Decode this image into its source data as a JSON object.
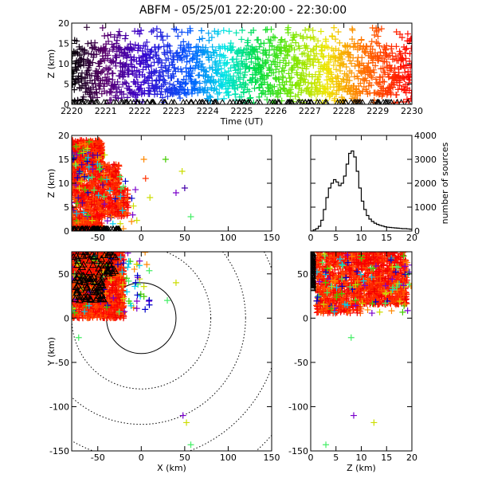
{
  "title": "ABFM - 05/25/01 22:20:00 - 22:30:00",
  "chart_data": [
    {
      "id": "time-height",
      "type": "scatter",
      "xlabel": "Time (UT)",
      "ylabel": "Z (km)",
      "xlim": [
        2220,
        2230
      ],
      "ylim": [
        0,
        20
      ],
      "xticks": [
        "2220",
        "2221",
        "2222",
        "2223",
        "2224",
        "2225",
        "2226",
        "2227",
        "2228",
        "2229",
        "2230"
      ],
      "yticks": [
        "0",
        "5",
        "10",
        "15",
        "20"
      ],
      "color_by": "time",
      "series": [
        {
          "values": [
            [
              2220.2,
              7
            ],
            [
              2220.5,
              9
            ],
            [
              2221,
              12
            ],
            [
              2221.5,
              8
            ],
            [
              2222,
              10
            ],
            [
              2222.5,
              6
            ],
            [
              2223,
              11
            ],
            [
              2223.5,
              9
            ],
            [
              2224,
              13
            ],
            [
              2224.5,
              7
            ],
            [
              2225,
              10
            ],
            [
              2225.5,
              8
            ],
            [
              2226,
              12
            ],
            [
              2226.5,
              9
            ],
            [
              2227,
              11
            ],
            [
              2227.5,
              6
            ],
            [
              2228,
              10
            ],
            [
              2228.5,
              8
            ],
            [
              2229,
              12
            ],
            [
              2229.5,
              9
            ],
            [
              2229.9,
              7
            ]
          ]
        }
      ],
      "band": {
        "low": 2.5,
        "high": 14.5
      },
      "ground_markers": true
    },
    {
      "id": "x-z",
      "type": "scatter",
      "xlabel": "",
      "ylabel": "Z (km)",
      "xlim": [
        -80,
        150
      ],
      "ylim": [
        0,
        20
      ],
      "xticks": [
        -50,
        0,
        50,
        100,
        150
      ],
      "yticks": [
        0,
        5,
        10,
        15,
        20
      ],
      "outliers": [
        {
          "x": 28,
          "y": 15,
          "color": "#44cc00"
        },
        {
          "x": 47,
          "y": 12.5,
          "color": "#ccdd00"
        },
        {
          "x": 40,
          "y": 8,
          "color": "#7a00cc"
        },
        {
          "x": 50,
          "y": 9,
          "color": "#4400aa"
        },
        {
          "x": 57,
          "y": 3,
          "color": "#44ee66"
        },
        {
          "x": 5,
          "y": 11,
          "color": "#ff3300"
        },
        {
          "x": 3,
          "y": 15,
          "color": "#ff8800"
        },
        {
          "x": 10,
          "y": 7,
          "color": "#ccdd00"
        }
      ]
    },
    {
      "id": "histogram",
      "type": "histogram",
      "xlabel": "",
      "ylabel": "number of sources",
      "xlim": [
        0,
        20
      ],
      "ylim": [
        0,
        4000
      ],
      "xticks": [
        0,
        5,
        10,
        15,
        20
      ],
      "yticks": [
        0,
        1000,
        2000,
        3000,
        4000
      ],
      "bin_width": 0.5,
      "values": [
        0,
        50,
        100,
        200,
        450,
        900,
        1400,
        1800,
        2000,
        2150,
        2050,
        1900,
        2000,
        2300,
        2800,
        3250,
        3350,
        3100,
        2500,
        1800,
        1250,
        900,
        650,
        500,
        400,
        330,
        280,
        240,
        210,
        180,
        160,
        150,
        140,
        130,
        120,
        110,
        100,
        100,
        90,
        80
      ]
    },
    {
      "id": "x-y",
      "type": "scatter",
      "xlabel": "X (km)",
      "ylabel": "Y (km)",
      "xlim": [
        -80,
        150
      ],
      "ylim": [
        -150,
        75
      ],
      "xticks": [
        -50,
        0,
        50,
        100,
        150
      ],
      "yticks": [
        -150,
        -100,
        -50,
        0,
        50
      ],
      "range_rings_km": [
        40,
        80,
        120,
        160,
        200
      ],
      "outliers": [
        {
          "x": 40,
          "y": 40,
          "color": "#ccdd00"
        },
        {
          "x": 30,
          "y": 20,
          "color": "#44ee66"
        },
        {
          "x": 48,
          "y": -110,
          "color": "#7a00cc"
        },
        {
          "x": 52,
          "y": -118,
          "color": "#ccdd00"
        },
        {
          "x": 57,
          "y": -143,
          "color": "#44ee66"
        },
        {
          "x": -72,
          "y": -22,
          "color": "#44ee66"
        }
      ]
    },
    {
      "id": "z-y",
      "type": "scatter",
      "xlabel": "Z (km)",
      "ylabel": "",
      "xlim": [
        0,
        20
      ],
      "ylim": [
        -150,
        75
      ],
      "xticks": [
        0,
        5,
        10,
        15,
        20
      ],
      "yticks": [
        -150,
        -100,
        -50,
        0,
        50
      ],
      "outliers": [
        {
          "x": 8,
          "y": -22,
          "color": "#44ee66"
        },
        {
          "x": 8.5,
          "y": -110,
          "color": "#7a00cc"
        },
        {
          "x": 12.5,
          "y": -118,
          "color": "#ccdd00"
        },
        {
          "x": 3,
          "y": -143,
          "color": "#44ee66"
        },
        {
          "x": 19.5,
          "y": 38,
          "color": "#44ee66"
        },
        {
          "x": 19.5,
          "y": 52,
          "color": "#4400aa"
        },
        {
          "x": 20,
          "y": 60,
          "color": "#7a00cc"
        }
      ]
    }
  ]
}
